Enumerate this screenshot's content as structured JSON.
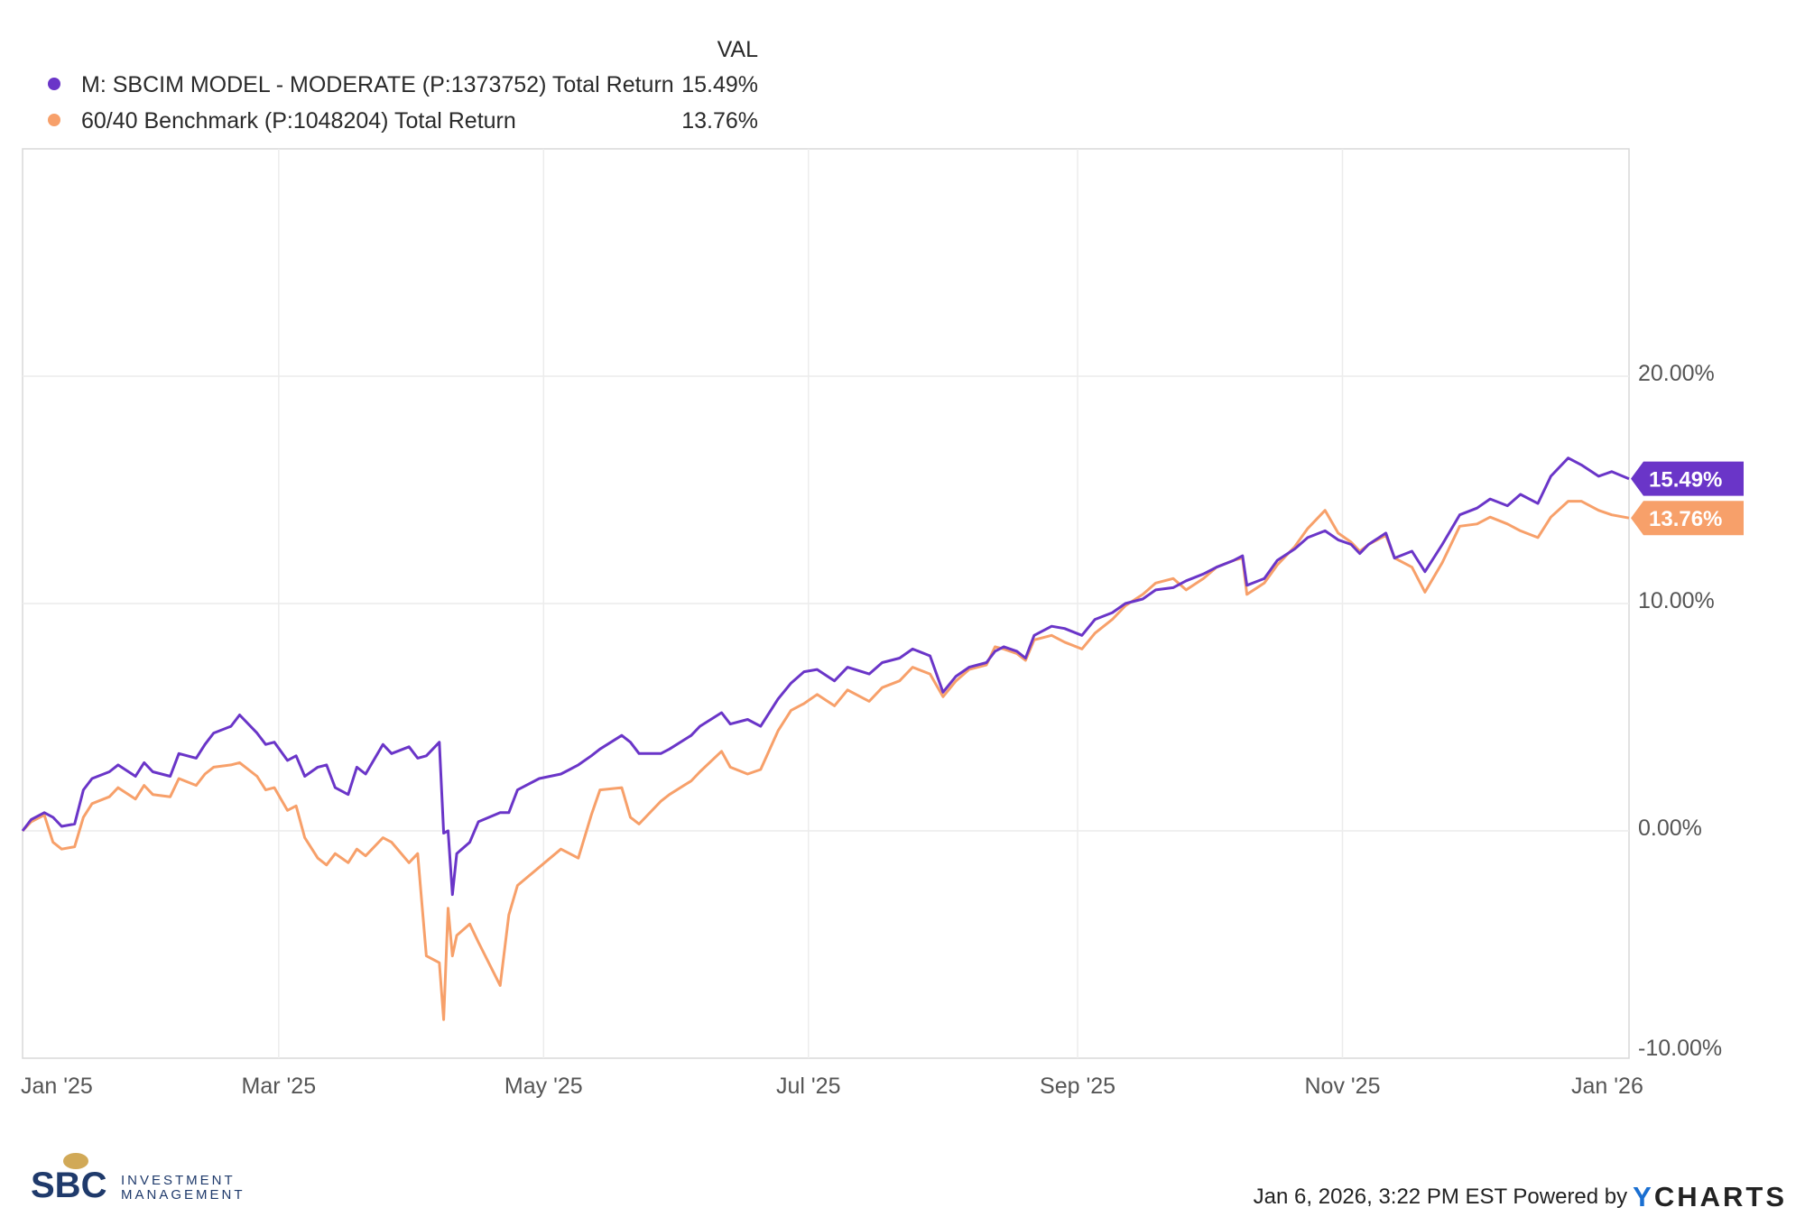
{
  "chart_data": {
    "type": "line",
    "legend_header": "VAL",
    "legend_position": "top-left",
    "grid": true,
    "x_ticks": [
      "Jan '25",
      "Mar '25",
      "May '25",
      "Jul '25",
      "Sep '25",
      "Nov '25",
      "Jan '26"
    ],
    "y_ticks": [
      "20.00%",
      "10.00%",
      "0.00%",
      "-10.00%"
    ],
    "y_tick_values": [
      20,
      10,
      0,
      -10
    ],
    "ylim": [
      -10,
      30
    ],
    "xlim": [
      "2025-01-01",
      "2026-01-06"
    ],
    "series": [
      {
        "name": "M: SBCIM MODEL - MODERATE (P:1373752) Total Return",
        "legend_value": "15.49%",
        "last_label": "15.49%",
        "color": "#6a35c8",
        "points": [
          [
            "2025-01-01",
            0.0
          ],
          [
            "2025-01-03",
            0.5
          ],
          [
            "2025-01-06",
            0.8
          ],
          [
            "2025-01-08",
            0.6
          ],
          [
            "2025-01-10",
            0.2
          ],
          [
            "2025-01-13",
            0.3
          ],
          [
            "2025-01-15",
            1.8
          ],
          [
            "2025-01-17",
            2.3
          ],
          [
            "2025-01-21",
            2.6
          ],
          [
            "2025-01-23",
            2.9
          ],
          [
            "2025-01-27",
            2.4
          ],
          [
            "2025-01-29",
            3.0
          ],
          [
            "2025-01-31",
            2.6
          ],
          [
            "2025-02-04",
            2.4
          ],
          [
            "2025-02-06",
            3.4
          ],
          [
            "2025-02-10",
            3.2
          ],
          [
            "2025-02-12",
            3.8
          ],
          [
            "2025-02-14",
            4.3
          ],
          [
            "2025-02-18",
            4.6
          ],
          [
            "2025-02-20",
            5.1
          ],
          [
            "2025-02-24",
            4.3
          ],
          [
            "2025-02-26",
            3.8
          ],
          [
            "2025-02-28",
            3.9
          ],
          [
            "2025-03-03",
            3.1
          ],
          [
            "2025-03-05",
            3.3
          ],
          [
            "2025-03-07",
            2.4
          ],
          [
            "2025-03-10",
            2.8
          ],
          [
            "2025-03-12",
            2.9
          ],
          [
            "2025-03-14",
            1.9
          ],
          [
            "2025-03-17",
            1.6
          ],
          [
            "2025-03-19",
            2.8
          ],
          [
            "2025-03-21",
            2.5
          ],
          [
            "2025-03-25",
            3.8
          ],
          [
            "2025-03-27",
            3.4
          ],
          [
            "2025-03-31",
            3.7
          ],
          [
            "2025-04-02",
            3.2
          ],
          [
            "2025-04-04",
            3.3
          ],
          [
            "2025-04-07",
            3.9
          ],
          [
            "2025-04-08",
            -0.1
          ],
          [
            "2025-04-09",
            0.0
          ],
          [
            "2025-04-10",
            -2.8
          ],
          [
            "2025-04-11",
            -1.0
          ],
          [
            "2025-04-14",
            -0.5
          ],
          [
            "2025-04-16",
            0.4
          ],
          [
            "2025-04-21",
            0.8
          ],
          [
            "2025-04-23",
            0.8
          ],
          [
            "2025-04-25",
            1.8
          ],
          [
            "2025-04-30",
            2.3
          ],
          [
            "2025-05-05",
            2.5
          ],
          [
            "2025-05-07",
            2.7
          ],
          [
            "2025-05-09",
            2.9
          ],
          [
            "2025-05-12",
            3.3
          ],
          [
            "2025-05-14",
            3.6
          ],
          [
            "2025-05-19",
            4.2
          ],
          [
            "2025-05-21",
            3.9
          ],
          [
            "2025-05-23",
            3.4
          ],
          [
            "2025-05-28",
            3.4
          ],
          [
            "2025-05-30",
            3.6
          ],
          [
            "2025-06-04",
            4.2
          ],
          [
            "2025-06-06",
            4.6
          ],
          [
            "2025-06-11",
            5.2
          ],
          [
            "2025-06-13",
            4.7
          ],
          [
            "2025-06-17",
            4.9
          ],
          [
            "2025-06-20",
            4.6
          ],
          [
            "2025-06-24",
            5.8
          ],
          [
            "2025-06-27",
            6.5
          ],
          [
            "2025-06-30",
            7.0
          ],
          [
            "2025-07-03",
            7.1
          ],
          [
            "2025-07-07",
            6.6
          ],
          [
            "2025-07-10",
            7.2
          ],
          [
            "2025-07-15",
            6.9
          ],
          [
            "2025-07-18",
            7.4
          ],
          [
            "2025-07-22",
            7.6
          ],
          [
            "2025-07-25",
            8.0
          ],
          [
            "2025-07-29",
            7.7
          ],
          [
            "2025-08-01",
            6.1
          ],
          [
            "2025-08-04",
            6.8
          ],
          [
            "2025-08-07",
            7.2
          ],
          [
            "2025-08-11",
            7.4
          ],
          [
            "2025-08-13",
            7.9
          ],
          [
            "2025-08-15",
            8.1
          ],
          [
            "2025-08-18",
            7.9
          ],
          [
            "2025-08-20",
            7.6
          ],
          [
            "2025-08-22",
            8.6
          ],
          [
            "2025-08-26",
            9.0
          ],
          [
            "2025-08-29",
            8.9
          ],
          [
            "2025-09-02",
            8.6
          ],
          [
            "2025-09-05",
            9.3
          ],
          [
            "2025-09-09",
            9.6
          ],
          [
            "2025-09-12",
            10.0
          ],
          [
            "2025-09-16",
            10.2
          ],
          [
            "2025-09-19",
            10.6
          ],
          [
            "2025-09-23",
            10.7
          ],
          [
            "2025-09-26",
            11.0
          ],
          [
            "2025-09-30",
            11.3
          ],
          [
            "2025-10-03",
            11.6
          ],
          [
            "2025-10-07",
            11.9
          ],
          [
            "2025-10-09",
            12.1
          ],
          [
            "2025-10-10",
            10.8
          ],
          [
            "2025-10-14",
            11.1
          ],
          [
            "2025-10-17",
            11.9
          ],
          [
            "2025-10-21",
            12.4
          ],
          [
            "2025-10-24",
            12.9
          ],
          [
            "2025-10-28",
            13.2
          ],
          [
            "2025-10-31",
            12.8
          ],
          [
            "2025-11-03",
            12.6
          ],
          [
            "2025-11-05",
            12.2
          ],
          [
            "2025-11-07",
            12.6
          ],
          [
            "2025-11-11",
            13.1
          ],
          [
            "2025-11-13",
            12.0
          ],
          [
            "2025-11-17",
            12.3
          ],
          [
            "2025-11-20",
            11.4
          ],
          [
            "2025-11-24",
            12.6
          ],
          [
            "2025-11-28",
            13.9
          ],
          [
            "2025-12-02",
            14.2
          ],
          [
            "2025-12-05",
            14.6
          ],
          [
            "2025-12-09",
            14.3
          ],
          [
            "2025-12-12",
            14.8
          ],
          [
            "2025-12-16",
            14.4
          ],
          [
            "2025-12-19",
            15.6
          ],
          [
            "2025-12-23",
            16.4
          ],
          [
            "2025-12-26",
            16.1
          ],
          [
            "2025-12-30",
            15.6
          ],
          [
            "2026-01-02",
            15.8
          ],
          [
            "2026-01-06",
            15.49
          ]
        ]
      },
      {
        "name": "60/40 Benchmark (P:1048204) Total Return",
        "legend_value": "13.76%",
        "last_label": "13.76%",
        "color": "#f7a06a",
        "points": [
          [
            "2025-01-01",
            0.0
          ],
          [
            "2025-01-03",
            0.4
          ],
          [
            "2025-01-06",
            0.7
          ],
          [
            "2025-01-08",
            -0.5
          ],
          [
            "2025-01-10",
            -0.8
          ],
          [
            "2025-01-13",
            -0.7
          ],
          [
            "2025-01-15",
            0.6
          ],
          [
            "2025-01-17",
            1.2
          ],
          [
            "2025-01-21",
            1.5
          ],
          [
            "2025-01-23",
            1.9
          ],
          [
            "2025-01-27",
            1.4
          ],
          [
            "2025-01-29",
            2.0
          ],
          [
            "2025-01-31",
            1.6
          ],
          [
            "2025-02-04",
            1.5
          ],
          [
            "2025-02-06",
            2.3
          ],
          [
            "2025-02-10",
            2.0
          ],
          [
            "2025-02-12",
            2.5
          ],
          [
            "2025-02-14",
            2.8
          ],
          [
            "2025-02-18",
            2.9
          ],
          [
            "2025-02-20",
            3.0
          ],
          [
            "2025-02-24",
            2.4
          ],
          [
            "2025-02-26",
            1.8
          ],
          [
            "2025-02-28",
            1.9
          ],
          [
            "2025-03-03",
            0.9
          ],
          [
            "2025-03-05",
            1.1
          ],
          [
            "2025-03-07",
            -0.3
          ],
          [
            "2025-03-10",
            -1.2
          ],
          [
            "2025-03-12",
            -1.5
          ],
          [
            "2025-03-14",
            -1.0
          ],
          [
            "2025-03-17",
            -1.4
          ],
          [
            "2025-03-19",
            -0.8
          ],
          [
            "2025-03-21",
            -1.1
          ],
          [
            "2025-03-25",
            -0.3
          ],
          [
            "2025-03-27",
            -0.5
          ],
          [
            "2025-03-31",
            -1.4
          ],
          [
            "2025-04-02",
            -1.0
          ],
          [
            "2025-04-04",
            -5.5
          ],
          [
            "2025-04-07",
            -5.8
          ],
          [
            "2025-04-08",
            -8.3
          ],
          [
            "2025-04-09",
            -3.4
          ],
          [
            "2025-04-10",
            -5.5
          ],
          [
            "2025-04-11",
            -4.6
          ],
          [
            "2025-04-14",
            -4.1
          ],
          [
            "2025-04-16",
            -4.9
          ],
          [
            "2025-04-21",
            -6.8
          ],
          [
            "2025-04-23",
            -3.7
          ],
          [
            "2025-04-25",
            -2.4
          ],
          [
            "2025-04-30",
            -1.6
          ],
          [
            "2025-05-05",
            -0.8
          ],
          [
            "2025-05-07",
            -1.0
          ],
          [
            "2025-05-09",
            -1.2
          ],
          [
            "2025-05-12",
            0.7
          ],
          [
            "2025-05-14",
            1.8
          ],
          [
            "2025-05-19",
            1.9
          ],
          [
            "2025-05-21",
            0.6
          ],
          [
            "2025-05-23",
            0.3
          ],
          [
            "2025-05-28",
            1.3
          ],
          [
            "2025-05-30",
            1.6
          ],
          [
            "2025-06-04",
            2.2
          ],
          [
            "2025-06-06",
            2.6
          ],
          [
            "2025-06-11",
            3.5
          ],
          [
            "2025-06-13",
            2.8
          ],
          [
            "2025-06-17",
            2.5
          ],
          [
            "2025-06-20",
            2.7
          ],
          [
            "2025-06-24",
            4.4
          ],
          [
            "2025-06-27",
            5.3
          ],
          [
            "2025-06-30",
            5.6
          ],
          [
            "2025-07-03",
            6.0
          ],
          [
            "2025-07-07",
            5.5
          ],
          [
            "2025-07-10",
            6.2
          ],
          [
            "2025-07-15",
            5.7
          ],
          [
            "2025-07-18",
            6.3
          ],
          [
            "2025-07-22",
            6.6
          ],
          [
            "2025-07-25",
            7.2
          ],
          [
            "2025-07-29",
            6.9
          ],
          [
            "2025-08-01",
            5.9
          ],
          [
            "2025-08-04",
            6.6
          ],
          [
            "2025-08-07",
            7.1
          ],
          [
            "2025-08-11",
            7.3
          ],
          [
            "2025-08-13",
            8.1
          ],
          [
            "2025-08-15",
            8.0
          ],
          [
            "2025-08-18",
            7.8
          ],
          [
            "2025-08-20",
            7.5
          ],
          [
            "2025-08-22",
            8.4
          ],
          [
            "2025-08-26",
            8.6
          ],
          [
            "2025-08-29",
            8.3
          ],
          [
            "2025-09-02",
            8.0
          ],
          [
            "2025-09-05",
            8.7
          ],
          [
            "2025-09-09",
            9.3
          ],
          [
            "2025-09-12",
            9.9
          ],
          [
            "2025-09-16",
            10.4
          ],
          [
            "2025-09-19",
            10.9
          ],
          [
            "2025-09-23",
            11.1
          ],
          [
            "2025-09-26",
            10.6
          ],
          [
            "2025-09-30",
            11.1
          ],
          [
            "2025-10-03",
            11.6
          ],
          [
            "2025-10-07",
            11.9
          ],
          [
            "2025-10-09",
            12.0
          ],
          [
            "2025-10-10",
            10.4
          ],
          [
            "2025-10-14",
            10.9
          ],
          [
            "2025-10-17",
            11.7
          ],
          [
            "2025-10-21",
            12.5
          ],
          [
            "2025-10-24",
            13.3
          ],
          [
            "2025-10-28",
            14.1
          ],
          [
            "2025-10-31",
            13.1
          ],
          [
            "2025-11-03",
            12.7
          ],
          [
            "2025-11-05",
            12.3
          ],
          [
            "2025-11-07",
            12.6
          ],
          [
            "2025-11-11",
            13.0
          ],
          [
            "2025-11-13",
            12.0
          ],
          [
            "2025-11-17",
            11.6
          ],
          [
            "2025-11-20",
            10.5
          ],
          [
            "2025-11-24",
            11.8
          ],
          [
            "2025-11-28",
            13.4
          ],
          [
            "2025-12-02",
            13.5
          ],
          [
            "2025-12-05",
            13.8
          ],
          [
            "2025-12-09",
            13.5
          ],
          [
            "2025-12-12",
            13.2
          ],
          [
            "2025-12-16",
            12.9
          ],
          [
            "2025-12-19",
            13.8
          ],
          [
            "2025-12-23",
            14.5
          ],
          [
            "2025-12-26",
            14.5
          ],
          [
            "2025-12-30",
            14.1
          ],
          [
            "2026-01-02",
            13.9
          ],
          [
            "2026-01-06",
            13.76
          ]
        ]
      }
    ]
  },
  "footer": {
    "timestamp": "Jan 6, 2026, 3:22 PM EST Powered by",
    "brand_prefix": "Y",
    "brand_rest": "CHARTS"
  },
  "logo": {
    "mark": "SBC",
    "line1": "INVESTMENT",
    "line2": "MANAGEMENT",
    "color": "#1f3a6b",
    "accent": "#c99a3a"
  }
}
